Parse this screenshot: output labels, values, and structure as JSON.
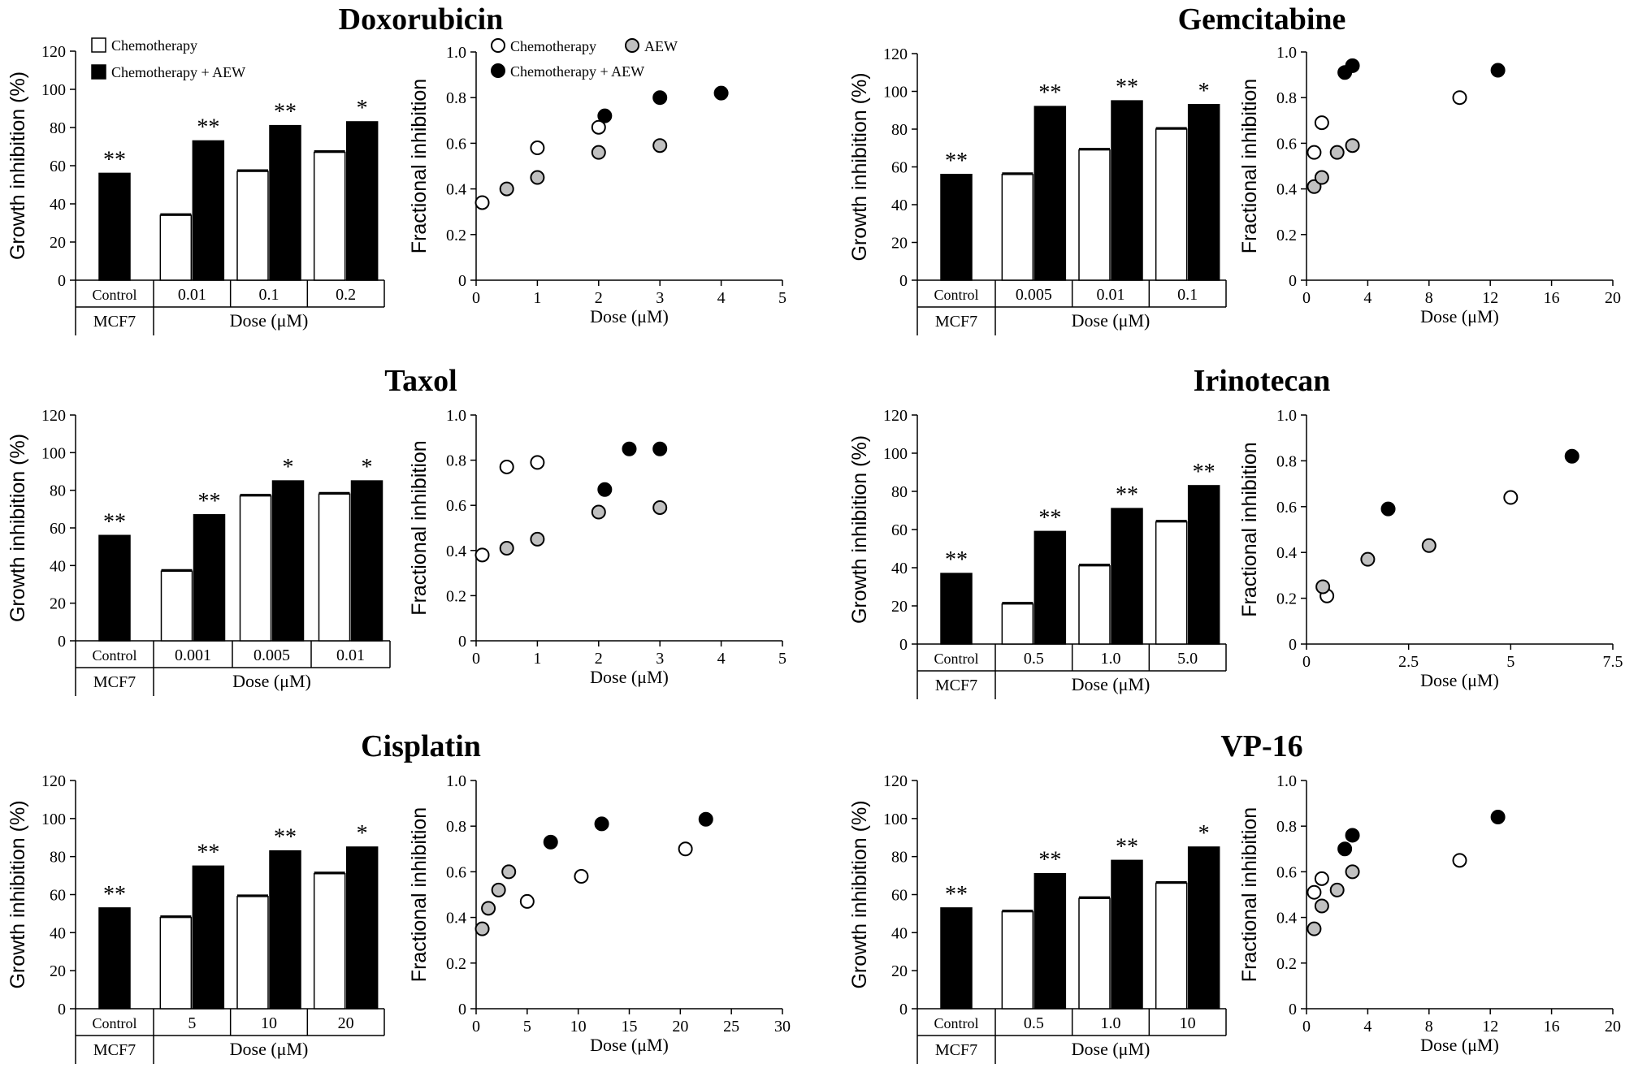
{
  "legend": {
    "bar_chemo": "Chemotherapy",
    "bar_combo": "Chemotherapy + AEW",
    "sc_chemo": "Chemotherapy",
    "sc_aew": "AEW",
    "sc_combo": "Chemotherapy + AEW"
  },
  "colors": {
    "chemo": "#ffffff",
    "aew": "#c0c0c0",
    "combo": "#000000"
  },
  "chart_data": [
    {
      "type": "bar",
      "panel": "doxorubicin-bar",
      "title": "Doxorubicin",
      "ylabel": "Growth inhibition (%)",
      "xlabel": "Dose (μM)",
      "control_label": "Control",
      "cell_line": "MCF7",
      "ylim": [
        0,
        120
      ],
      "yticks": [
        0,
        20,
        40,
        60,
        80,
        100,
        120
      ],
      "categories": [
        "0.01",
        "0.1",
        "0.2"
      ],
      "control_value": 56,
      "control_stars": "**",
      "series": [
        {
          "name": "Chemotherapy",
          "values": [
            34,
            57,
            67
          ]
        },
        {
          "name": "Chemotherapy + AEW",
          "values": [
            73,
            81,
            83
          ]
        }
      ],
      "stars": [
        "**",
        "**",
        "*"
      ]
    },
    {
      "type": "scatter",
      "panel": "doxorubicin-scatter",
      "ylabel": "Fractional inhibition",
      "xlabel": "Dose (μM)",
      "xlim": [
        0,
        5
      ],
      "xticks": [
        "0",
        "1",
        "2",
        "3",
        "4",
        "5"
      ],
      "ylim": [
        0,
        1
      ],
      "yticks": [
        "0",
        "0.2",
        "0.4",
        "0.6",
        "0.8",
        "1.0"
      ],
      "series": [
        {
          "name": "Chemotherapy",
          "points": [
            [
              0.1,
              0.34
            ],
            [
              1.0,
              0.58
            ],
            [
              2.0,
              0.67
            ]
          ]
        },
        {
          "name": "AEW",
          "points": [
            [
              0.5,
              0.4
            ],
            [
              1.0,
              0.45
            ],
            [
              2.0,
              0.56
            ],
            [
              3.0,
              0.59
            ]
          ]
        },
        {
          "name": "Chemotherapy + AEW",
          "points": [
            [
              2.1,
              0.72
            ],
            [
              3.0,
              0.8
            ],
            [
              4.0,
              0.82
            ]
          ]
        }
      ]
    },
    {
      "type": "bar",
      "panel": "gemcitabine-bar",
      "title": "Gemcitabine",
      "ylabel": "Growth inhibition (%)",
      "xlabel": "Dose (μM)",
      "control_label": "Control",
      "cell_line": "MCF7",
      "ylim": [
        0,
        120
      ],
      "yticks": [
        0,
        20,
        40,
        60,
        80,
        100,
        120
      ],
      "categories": [
        "0.005",
        "0.01",
        "0.1"
      ],
      "control_value": 56,
      "control_stars": "**",
      "series": [
        {
          "name": "Chemotherapy",
          "values": [
            56,
            69,
            80
          ]
        },
        {
          "name": "Chemotherapy + AEW",
          "values": [
            92,
            95,
            93
          ]
        }
      ],
      "stars": [
        "**",
        "**",
        "*"
      ]
    },
    {
      "type": "scatter",
      "panel": "gemcitabine-scatter",
      "ylabel": "Fractional inhibition",
      "xlabel": "Dose (μM)",
      "xlim": [
        0,
        20
      ],
      "xticks": [
        "0",
        "4",
        "8",
        "12",
        "16",
        "20"
      ],
      "ylim": [
        0,
        1
      ],
      "yticks": [
        "0",
        "0.2",
        "0.4",
        "0.6",
        "0.8",
        "1.0"
      ],
      "series": [
        {
          "name": "Chemotherapy",
          "points": [
            [
              0.5,
              0.56
            ],
            [
              1.0,
              0.69
            ],
            [
              10.0,
              0.8
            ]
          ]
        },
        {
          "name": "AEW",
          "points": [
            [
              0.5,
              0.41
            ],
            [
              1.0,
              0.45
            ],
            [
              2.0,
              0.56
            ],
            [
              3.0,
              0.59
            ]
          ]
        },
        {
          "name": "Chemotherapy + AEW",
          "points": [
            [
              2.5,
              0.91
            ],
            [
              3.0,
              0.94
            ],
            [
              12.5,
              0.92
            ]
          ]
        }
      ]
    },
    {
      "type": "bar",
      "panel": "taxol-bar",
      "title": "Taxol",
      "ylabel": "Growth inhibition (%)",
      "xlabel": "Dose (μM)",
      "control_label": "Control",
      "cell_line": "MCF7",
      "ylim": [
        0,
        120
      ],
      "yticks": [
        0,
        20,
        40,
        60,
        80,
        100,
        120
      ],
      "categories": [
        "0.001",
        "0.005",
        "0.01"
      ],
      "control_value": 56,
      "control_stars": "**",
      "series": [
        {
          "name": "Chemotherapy",
          "values": [
            37,
            77,
            78
          ]
        },
        {
          "name": "Chemotherapy + AEW",
          "values": [
            67,
            85,
            85
          ]
        }
      ],
      "stars": [
        "**",
        "*",
        "*"
      ]
    },
    {
      "type": "scatter",
      "panel": "taxol-scatter",
      "ylabel": "Fractional inhibition",
      "xlabel": "Dose (μM)",
      "xlim": [
        0,
        5
      ],
      "xticks": [
        "0",
        "1",
        "2",
        "3",
        "4",
        "5"
      ],
      "ylim": [
        0,
        1
      ],
      "yticks": [
        "0",
        "0.2",
        "0.4",
        "0.6",
        "0.8",
        "1.0"
      ],
      "series": [
        {
          "name": "Chemotherapy",
          "points": [
            [
              0.1,
              0.38
            ],
            [
              0.5,
              0.77
            ],
            [
              1.0,
              0.79
            ]
          ]
        },
        {
          "name": "AEW",
          "points": [
            [
              0.5,
              0.41
            ],
            [
              1.0,
              0.45
            ],
            [
              2.0,
              0.57
            ],
            [
              3.0,
              0.59
            ]
          ]
        },
        {
          "name": "Chemotherapy + AEW",
          "points": [
            [
              2.1,
              0.67
            ],
            [
              2.5,
              0.85
            ],
            [
              3.0,
              0.85
            ]
          ]
        }
      ]
    },
    {
      "type": "bar",
      "panel": "irinotecan-bar",
      "title": "Irinotecan",
      "ylabel": "Growth inhibition (%)",
      "xlabel": "Dose (μM)",
      "control_label": "Control",
      "cell_line": "MCF7",
      "ylim": [
        0,
        120
      ],
      "yticks": [
        0,
        20,
        40,
        60,
        80,
        100,
        120
      ],
      "categories": [
        "0.5",
        "1.0",
        "5.0"
      ],
      "control_value": 37,
      "control_stars": "**",
      "series": [
        {
          "name": "Chemotherapy",
          "values": [
            21,
            41,
            64
          ]
        },
        {
          "name": "Chemotherapy + AEW",
          "values": [
            59,
            71,
            83
          ]
        }
      ],
      "stars": [
        "**",
        "**",
        "**"
      ]
    },
    {
      "type": "scatter",
      "panel": "irinotecan-scatter",
      "ylabel": "Fractional inhibition",
      "xlabel": "Dose (μM)",
      "xlim": [
        0,
        7.5
      ],
      "xticks": [
        "0",
        "2.5",
        "5",
        "7.5"
      ],
      "ylim": [
        0,
        1
      ],
      "yticks": [
        "0",
        "0.2",
        "0.4",
        "0.6",
        "0.8",
        "1.0"
      ],
      "series": [
        {
          "name": "Chemotherapy",
          "points": [
            [
              0.5,
              0.21
            ],
            [
              5.0,
              0.64
            ]
          ]
        },
        {
          "name": "AEW",
          "points": [
            [
              0.4,
              0.25
            ],
            [
              1.5,
              0.37
            ],
            [
              3.0,
              0.43
            ]
          ]
        },
        {
          "name": "Chemotherapy + AEW",
          "points": [
            [
              2.0,
              0.59
            ],
            [
              6.5,
              0.82
            ]
          ]
        }
      ]
    },
    {
      "type": "bar",
      "panel": "cisplatin-bar",
      "title": "Cisplatin",
      "ylabel": "Growth inhibition (%)",
      "xlabel": "Dose (μM)",
      "control_label": "Control",
      "cell_line": "MCF7",
      "ylim": [
        0,
        120
      ],
      "yticks": [
        0,
        20,
        40,
        60,
        80,
        100,
        120
      ],
      "categories": [
        "5",
        "10",
        "20"
      ],
      "control_value": 53,
      "control_stars": "**",
      "series": [
        {
          "name": "Chemotherapy",
          "values": [
            48,
            59,
            71
          ]
        },
        {
          "name": "Chemotherapy + AEW",
          "values": [
            75,
            83,
            85
          ]
        }
      ],
      "stars": [
        "**",
        "**",
        "*"
      ]
    },
    {
      "type": "scatter",
      "panel": "cisplatin-scatter",
      "ylabel": "Fractional inhibition",
      "xlabel": "Dose (μM)",
      "xlim": [
        0,
        30
      ],
      "xticks": [
        "0",
        "5",
        "10",
        "15",
        "20",
        "25",
        "30"
      ],
      "ylim": [
        0,
        1
      ],
      "yticks": [
        "0",
        "0.2",
        "0.4",
        "0.6",
        "0.8",
        "1.0"
      ],
      "series": [
        {
          "name": "Chemotherapy",
          "points": [
            [
              5.0,
              0.47
            ],
            [
              10.3,
              0.58
            ],
            [
              20.5,
              0.7
            ]
          ]
        },
        {
          "name": "AEW",
          "points": [
            [
              0.6,
              0.35
            ],
            [
              1.2,
              0.44
            ],
            [
              2.2,
              0.52
            ],
            [
              3.2,
              0.6
            ]
          ]
        },
        {
          "name": "Chemotherapy + AEW",
          "points": [
            [
              7.3,
              0.73
            ],
            [
              12.3,
              0.81
            ],
            [
              22.5,
              0.83
            ]
          ]
        }
      ]
    },
    {
      "type": "bar",
      "panel": "vp16-bar",
      "title": "VP-16",
      "ylabel": "Growth inhibition (%)",
      "xlabel": "Dose (μM)",
      "control_label": "Control",
      "cell_line": "MCF7",
      "ylim": [
        0,
        120
      ],
      "yticks": [
        0,
        20,
        40,
        60,
        80,
        100,
        120
      ],
      "categories": [
        "0.5",
        "1.0",
        "10"
      ],
      "control_value": 53,
      "control_stars": "**",
      "series": [
        {
          "name": "Chemotherapy",
          "values": [
            51,
            58,
            66
          ]
        },
        {
          "name": "Chemotherapy + AEW",
          "values": [
            71,
            78,
            85
          ]
        }
      ],
      "stars": [
        "**",
        "**",
        "*"
      ]
    },
    {
      "type": "scatter",
      "panel": "vp16-scatter",
      "ylabel": "Fractional inhibition",
      "xlabel": "Dose (μM)",
      "xlim": [
        0,
        20
      ],
      "xticks": [
        "0",
        "4",
        "8",
        "12",
        "16",
        "20"
      ],
      "ylim": [
        0,
        1
      ],
      "yticks": [
        "0",
        "0.2",
        "0.4",
        "0.6",
        "0.8",
        "1.0"
      ],
      "series": [
        {
          "name": "Chemotherapy",
          "points": [
            [
              0.5,
              0.51
            ],
            [
              1.0,
              0.57
            ],
            [
              10.0,
              0.65
            ]
          ]
        },
        {
          "name": "AEW",
          "points": [
            [
              0.5,
              0.35
            ],
            [
              1.0,
              0.45
            ],
            [
              2.0,
              0.52
            ],
            [
              3.0,
              0.6
            ]
          ]
        },
        {
          "name": "Chemotherapy + AEW",
          "points": [
            [
              2.5,
              0.7
            ],
            [
              3.0,
              0.76
            ],
            [
              12.5,
              0.84
            ]
          ]
        }
      ]
    }
  ]
}
